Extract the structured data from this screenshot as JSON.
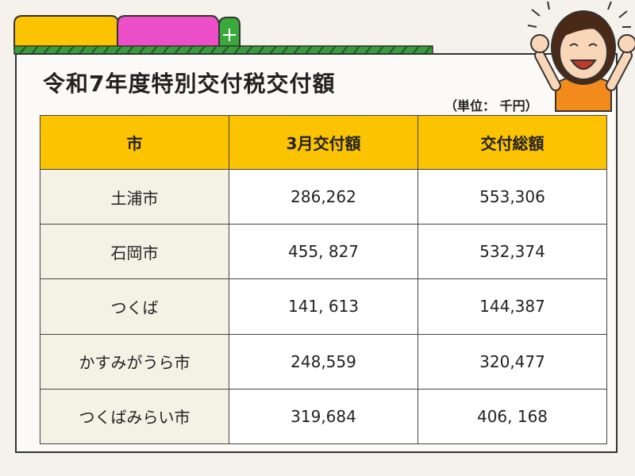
{
  "title": "令和7年度特別交付税交付額",
  "unit": "（単位： 千円）",
  "table": {
    "header": [
      "市",
      "3月交付額",
      "交付総額"
    ],
    "rows": [
      [
        "土浦市",
        "286,262",
        "553,306"
      ],
      [
        "石岡市",
        "455, 827",
        "532,374"
      ],
      [
        "つくば",
        "141, 613",
        "144,387"
      ],
      [
        "かすみがうら市",
        "248,559",
        "320,477"
      ],
      [
        "つくばみらい市",
        "319,684",
        "406, 168"
      ]
    ]
  }
}
